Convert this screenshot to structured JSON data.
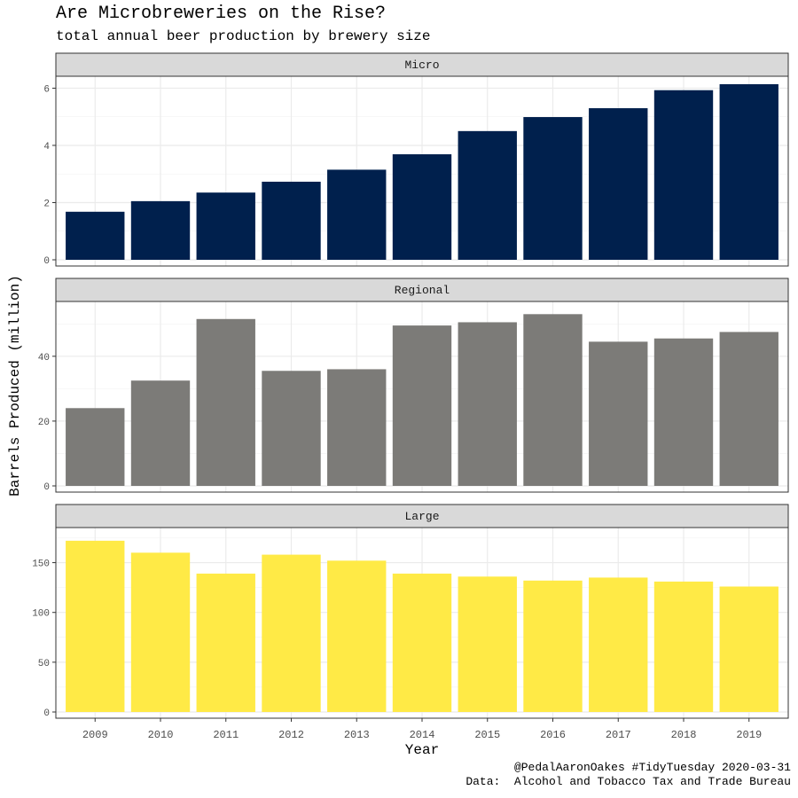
{
  "title": "Are Microbreweries on the Rise?",
  "subtitle": "total annual beer production by brewery size",
  "caption_line1": "@PedalAaronOakes #TidyTuesday 2020-03-31",
  "caption_line2": "Data:  Alcohol and Tobacco Tax and Trade Bureau",
  "chart_data": {
    "type": "bar",
    "faceted": true,
    "xlabel": "Year",
    "ylabel": "Barrels Produced (million)",
    "categories": [
      "2009",
      "2010",
      "2011",
      "2012",
      "2013",
      "2014",
      "2015",
      "2016",
      "2017",
      "2018",
      "2019"
    ],
    "grid": true,
    "panels": [
      {
        "name": "Micro",
        "color": "#00204D",
        "ylim": [
          0,
          6.2
        ],
        "yticks": [
          0,
          2,
          4,
          6
        ],
        "values": [
          1.68,
          2.05,
          2.35,
          2.73,
          3.15,
          3.69,
          4.5,
          4.99,
          5.3,
          5.93,
          6.14
        ]
      },
      {
        "name": "Regional",
        "color": "#7C7B78",
        "ylim": [
          0,
          55
        ],
        "yticks": [
          0,
          20,
          40
        ],
        "values": [
          24,
          32.5,
          51.5,
          35.5,
          36,
          49.5,
          50.5,
          53,
          44.5,
          45.5,
          47.5
        ]
      },
      {
        "name": "Large",
        "color": "#FFEA46",
        "ylim": [
          0,
          179
        ],
        "yticks": [
          0,
          50,
          100,
          150
        ],
        "values": [
          172,
          160,
          139,
          158,
          152,
          139,
          136,
          132,
          135,
          131,
          126
        ]
      }
    ]
  }
}
